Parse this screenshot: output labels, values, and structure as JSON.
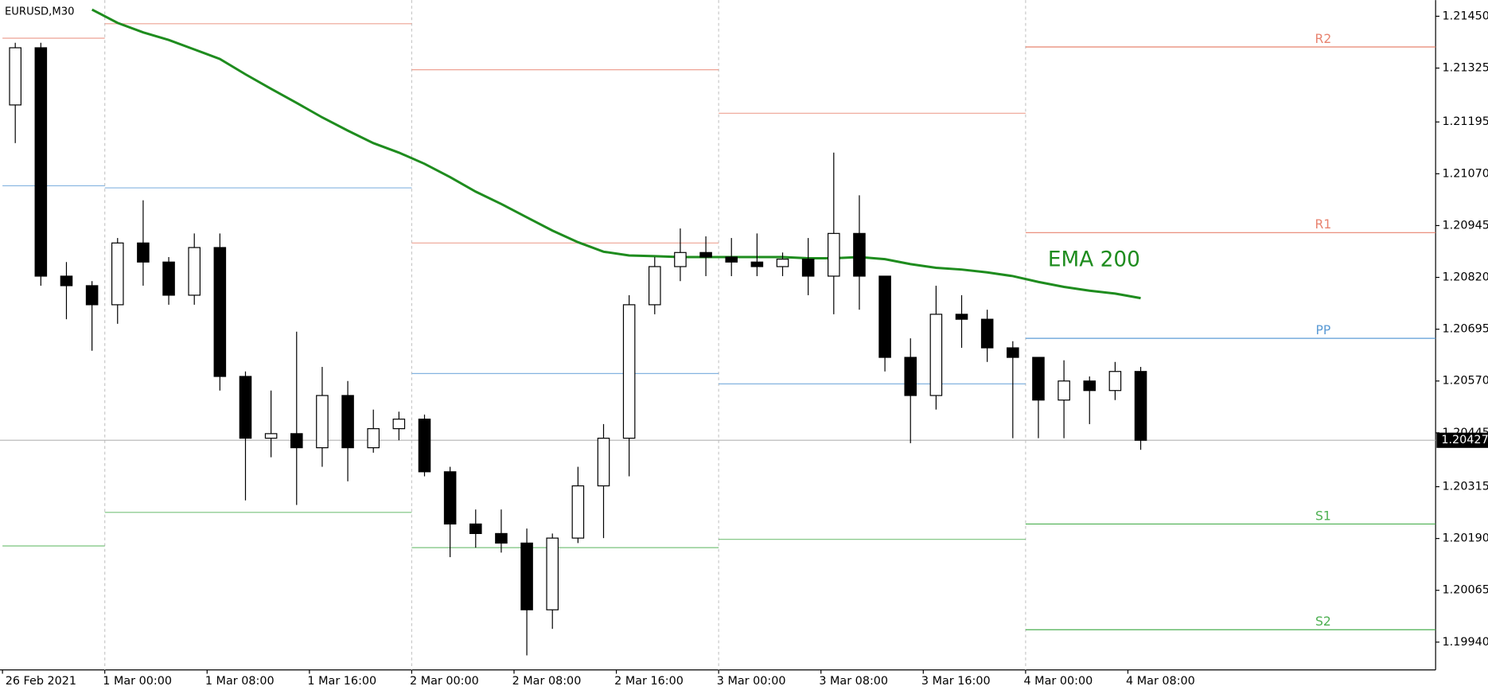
{
  "chart_data": {
    "type": "candlestick",
    "title": "EURUSD,M30",
    "categories": [
      "26 Feb 2021",
      null,
      null,
      null,
      "1 Mar 00:00",
      null,
      null,
      null,
      "1 Mar 08:00",
      null,
      null,
      null,
      "1 Mar 16:00",
      null,
      null,
      null,
      "2 Mar 00:00",
      null,
      null,
      null,
      "2 Mar 08:00",
      null,
      null,
      null,
      "2 Mar 16:00",
      null,
      null,
      null,
      "3 Mar 00:00",
      null,
      null,
      null,
      "3 Mar 08:00",
      null,
      null,
      null,
      "3 Mar 16:00",
      null,
      null,
      null,
      "4 Mar 00:00",
      null,
      null,
      null,
      "4 Mar 08:00"
    ],
    "candles": [
      [
        1.21236,
        1.21386,
        1.21144,
        1.21374
      ],
      [
        1.21374,
        1.21386,
        1.208,
        1.20823
      ],
      [
        1.20823,
        1.20857,
        1.20719,
        1.208
      ],
      [
        1.208,
        1.20811,
        1.20643,
        1.20754
      ],
      [
        1.20754,
        1.20915,
        1.20708,
        1.20903
      ],
      [
        1.20903,
        1.21006,
        1.208,
        1.20857
      ],
      [
        1.20857,
        1.20869,
        1.20754,
        1.20777
      ],
      [
        1.20777,
        1.20926,
        1.20754,
        1.20892
      ],
      [
        1.20892,
        1.20926,
        1.20547,
        1.20581
      ],
      [
        1.20581,
        1.20593,
        1.20282,
        1.20432
      ],
      [
        1.20432,
        1.20547,
        1.20386,
        1.20443
      ],
      [
        1.20443,
        1.20689,
        1.20271,
        1.20409
      ],
      [
        1.20409,
        1.20604,
        1.20363,
        1.20535
      ],
      [
        1.20535,
        1.2057,
        1.20328,
        1.20409
      ],
      [
        1.20409,
        1.20501,
        1.20397,
        1.20455
      ],
      [
        1.20455,
        1.20496,
        1.20427,
        1.20478
      ],
      [
        1.20478,
        1.20489,
        1.2034,
        1.20351
      ],
      [
        1.20351,
        1.20363,
        1.20145,
        1.20225
      ],
      [
        1.20225,
        1.2026,
        1.20168,
        1.20202
      ],
      [
        1.20202,
        1.2026,
        1.20156,
        1.20179
      ],
      [
        1.20179,
        1.20214,
        1.19908,
        1.20018
      ],
      [
        1.20018,
        1.20202,
        1.19972,
        1.20191
      ],
      [
        1.20191,
        1.20363,
        1.20179,
        1.20317
      ],
      [
        1.20317,
        1.20466,
        1.20191,
        1.20432
      ],
      [
        1.20432,
        1.20777,
        1.2034,
        1.20754
      ],
      [
        1.20754,
        1.20869,
        1.20731,
        1.20846
      ],
      [
        1.20846,
        1.20938,
        1.20811,
        1.2088
      ],
      [
        1.2088,
        1.20919,
        1.20823,
        1.20869
      ],
      [
        1.20869,
        1.20915,
        1.20823,
        1.20857
      ],
      [
        1.20857,
        1.20926,
        1.20823,
        1.20846
      ],
      [
        1.20846,
        1.2088,
        1.20823,
        1.20864
      ],
      [
        1.20864,
        1.20915,
        1.20777,
        1.20823
      ],
      [
        1.20823,
        1.21121,
        1.20731,
        1.20926
      ],
      [
        1.20926,
        1.21018,
        1.20742,
        1.20823
      ],
      [
        1.20823,
        1.20823,
        1.20593,
        1.20627
      ],
      [
        1.20627,
        1.20673,
        1.2042,
        1.20535
      ],
      [
        1.20535,
        1.208,
        1.20501,
        1.20731
      ],
      [
        1.20731,
        1.20777,
        1.2065,
        1.20719
      ],
      [
        1.20719,
        1.20742,
        1.20616,
        1.2065
      ],
      [
        1.2065,
        1.20666,
        1.20432,
        1.20627
      ],
      [
        1.20627,
        1.20627,
        1.20432,
        1.20524
      ],
      [
        1.20524,
        1.2062,
        1.20432,
        1.2057
      ],
      [
        1.2057,
        1.20581,
        1.20466,
        1.20547
      ],
      [
        1.20547,
        1.20616,
        1.20524,
        1.20593
      ],
      [
        1.20593,
        1.20604,
        1.20404,
        1.20427
      ]
    ],
    "series": [
      {
        "name": "EMA 200",
        "color": "#1e8c1e",
        "values": [
          null,
          null,
          null,
          1.21466,
          1.21434,
          1.21411,
          1.21393,
          1.2137,
          1.21347,
          1.2131,
          1.21275,
          1.21241,
          1.21206,
          1.21174,
          1.21144,
          1.21121,
          1.21094,
          1.21062,
          1.21027,
          1.20997,
          1.20965,
          1.20933,
          1.20905,
          1.20882,
          1.20873,
          1.20871,
          1.20869,
          1.20869,
          1.20869,
          1.20869,
          1.20869,
          1.20866,
          1.20866,
          1.20869,
          1.20864,
          1.20852,
          1.20843,
          1.20839,
          1.20832,
          1.20823,
          1.20809,
          1.20797,
          1.20788,
          1.20781,
          1.2077
        ]
      }
    ],
    "pivots": [
      {
        "name": "R2",
        "color": "#e8836f",
        "values": [
          null,
          null,
          1.21321,
          null,
          1.21376
        ]
      },
      {
        "name": "R1",
        "color": "#e8836f",
        "values": [
          1.21397,
          1.21432,
          1.20903,
          1.21216,
          1.20928
        ]
      },
      {
        "name": "PP",
        "color": "#5b9bd5",
        "values": [
          1.21041,
          1.21036,
          1.20588,
          1.20563,
          1.20673
        ]
      },
      {
        "name": "S1",
        "color": "#4caf50",
        "values": [
          1.20172,
          1.20253,
          1.20168,
          1.20188,
          1.20225
        ]
      },
      {
        "name": "S2",
        "color": "#4caf50",
        "values": [
          null,
          null,
          null,
          null,
          1.1997
        ]
      }
    ],
    "last_price": 1.20427,
    "ylim": [
      1.19873,
      1.21489
    ],
    "yticks": [
      {
        "value": 1.2145,
        "label": "1.21450"
      },
      1.21325,
      1.21195,
      {
        "value": 1.2107,
        "label": "1.21070"
      },
      1.20945,
      {
        "value": 1.2082,
        "label": "1.20820"
      },
      1.20695,
      {
        "value": 1.2057,
        "label": "1.20570"
      },
      1.20445,
      1.20315,
      {
        "value": 1.2019,
        "label": "1.20190"
      },
      1.20065,
      {
        "value": 1.1994,
        "label": "1.19940"
      }
    ]
  }
}
